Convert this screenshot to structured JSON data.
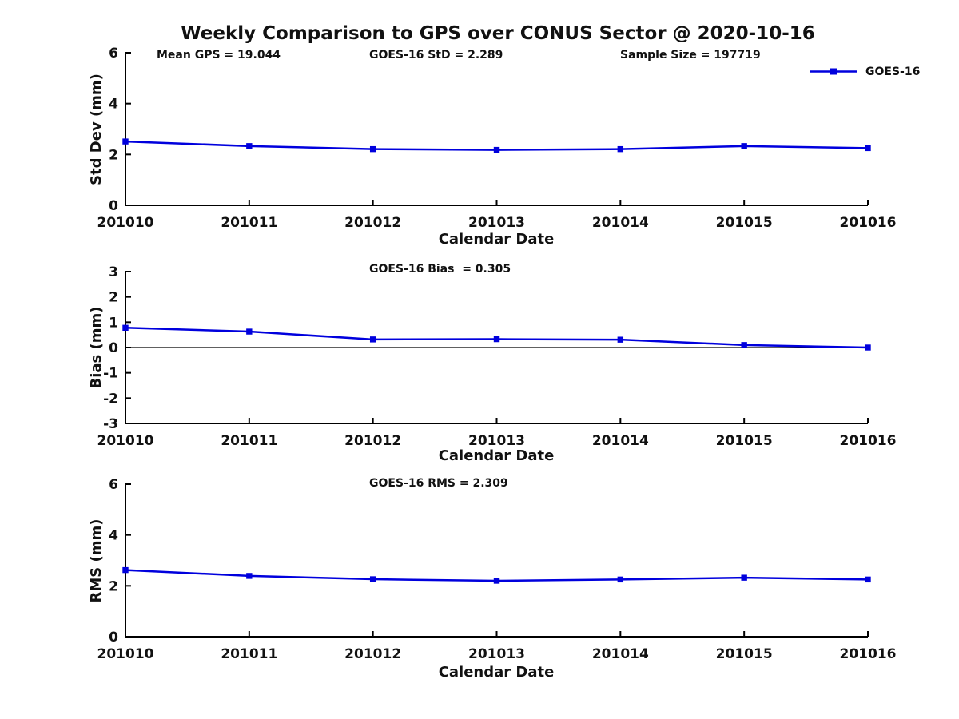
{
  "title": "Weekly Comparison to GPS over CONUS Sector @ 2020-10-16",
  "legend": {
    "label": "GOES-16"
  },
  "chart_data": [
    {
      "id": "std-dev",
      "type": "line",
      "categories": [
        "201010",
        "201011",
        "201012",
        "201013",
        "201014",
        "201015",
        "201016"
      ],
      "series": [
        {
          "name": "GOES-16",
          "color": "#0000dd",
          "marker": "square",
          "values": [
            2.51,
            2.33,
            2.21,
            2.18,
            2.21,
            2.33,
            2.25
          ]
        }
      ],
      "xlabel": "Calendar Date",
      "ylabel": "Std Dev (mm)",
      "ylim": [
        0,
        6
      ],
      "yticks": [
        0,
        2,
        4,
        6
      ],
      "grid": false,
      "legend_position": "top-right-outside",
      "annotations": [
        "Mean GPS = 19.044",
        "GOES-16 StD = 2.289",
        "Sample Size = 197719"
      ]
    },
    {
      "id": "bias",
      "type": "line",
      "categories": [
        "201010",
        "201011",
        "201012",
        "201013",
        "201014",
        "201015",
        "201016"
      ],
      "series": [
        {
          "name": "GOES-16",
          "color": "#0000dd",
          "marker": "square",
          "values": [
            0.78,
            0.63,
            0.32,
            0.33,
            0.31,
            0.1,
            0.0
          ]
        }
      ],
      "xlabel": "Calendar Date",
      "ylabel": "Bias (mm)",
      "ylim": [
        -3,
        3
      ],
      "yticks": [
        -3,
        -2,
        -1,
        0,
        1,
        2,
        3
      ],
      "zero_line": true,
      "grid": false,
      "annotations": [
        "GOES-16 Bias  = 0.305"
      ]
    },
    {
      "id": "rms",
      "type": "line",
      "categories": [
        "201010",
        "201011",
        "201012",
        "201013",
        "201014",
        "201015",
        "201016"
      ],
      "series": [
        {
          "name": "GOES-16",
          "color": "#0000dd",
          "marker": "square",
          "values": [
            2.62,
            2.39,
            2.26,
            2.2,
            2.25,
            2.32,
            2.25
          ]
        }
      ],
      "xlabel": "Calendar Date",
      "ylabel": "RMS (mm)",
      "ylim": [
        0,
        6
      ],
      "yticks": [
        0,
        2,
        4,
        6
      ],
      "grid": false,
      "annotations": [
        "GOES-16 RMS = 2.309"
      ]
    }
  ]
}
